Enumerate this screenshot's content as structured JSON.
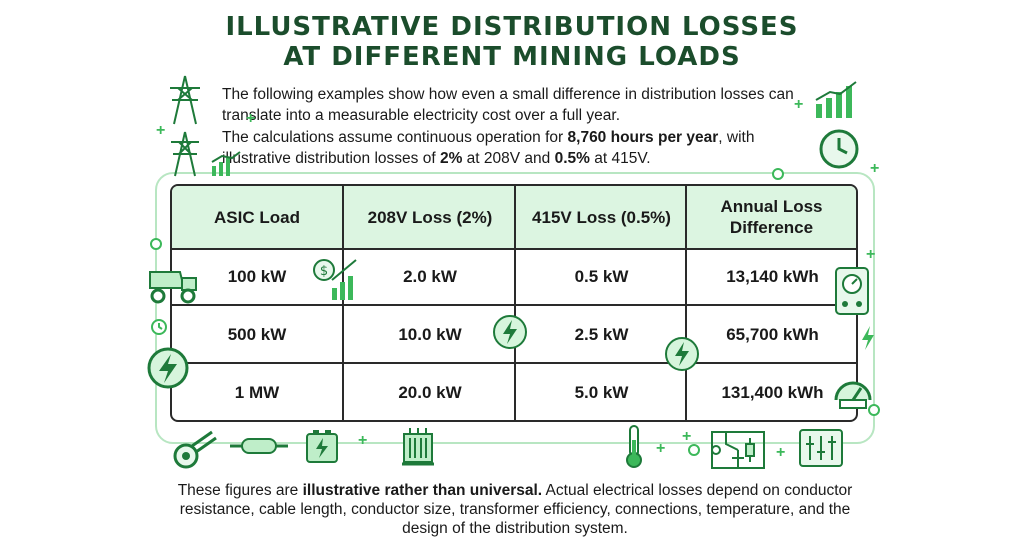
{
  "title": {
    "line1": "ILLUSTRATIVE DISTRIBUTION LOSSES",
    "line2": "AT DIFFERENT MINING LOADS"
  },
  "intro": {
    "p1": "The following examples show how even a small difference in distribution losses can translate into a measurable electricity cost over a full year.",
    "p2_a": "The calculations assume continuous operation for ",
    "p2_hours": "8,760 hours per year",
    "p2_b": ", with illustrative distribution losses of ",
    "p2_loss1": "2%",
    "p2_c": " at 208V and ",
    "p2_loss2": "0.5%",
    "p2_d": " at 415V."
  },
  "table": {
    "headers": [
      "ASIC Load",
      "208V Loss (2%)",
      "415V Loss (0.5%)",
      "Annual Loss Difference"
    ],
    "rows": [
      [
        "100 kW",
        "2.0 kW",
        "0.5 kW",
        "13,140 kWh"
      ],
      [
        "500 kW",
        "10.0 kW",
        "2.5 kW",
        "65,700 kWh"
      ],
      [
        "1 MW",
        "20.0 kW",
        "5.0 kW",
        "131,400 kWh"
      ]
    ]
  },
  "footer": {
    "a": "These figures are ",
    "bold": "illustrative rather than universal.",
    "b": " Actual electrical losses depend on conductor resistance, cable length, conductor size, transformer efficiency, connections, temperature, and the design of the distribution system."
  },
  "colors": {
    "accent": "#3cb85a",
    "title": "#1b4d2c",
    "header_bg": "#dcf5e1",
    "frame": "#b8e6c2"
  },
  "icons": [
    "transmission-tower-icon",
    "bar-chart-icon",
    "clock-icon",
    "mining-truck-icon",
    "money-growth-icon",
    "lightning-icon",
    "meter-icon",
    "gauge-icon",
    "cable-icon",
    "fuse-icon",
    "battery-icon",
    "transformer-icon",
    "thermometer-icon",
    "circuit-icon",
    "panel-icon"
  ]
}
